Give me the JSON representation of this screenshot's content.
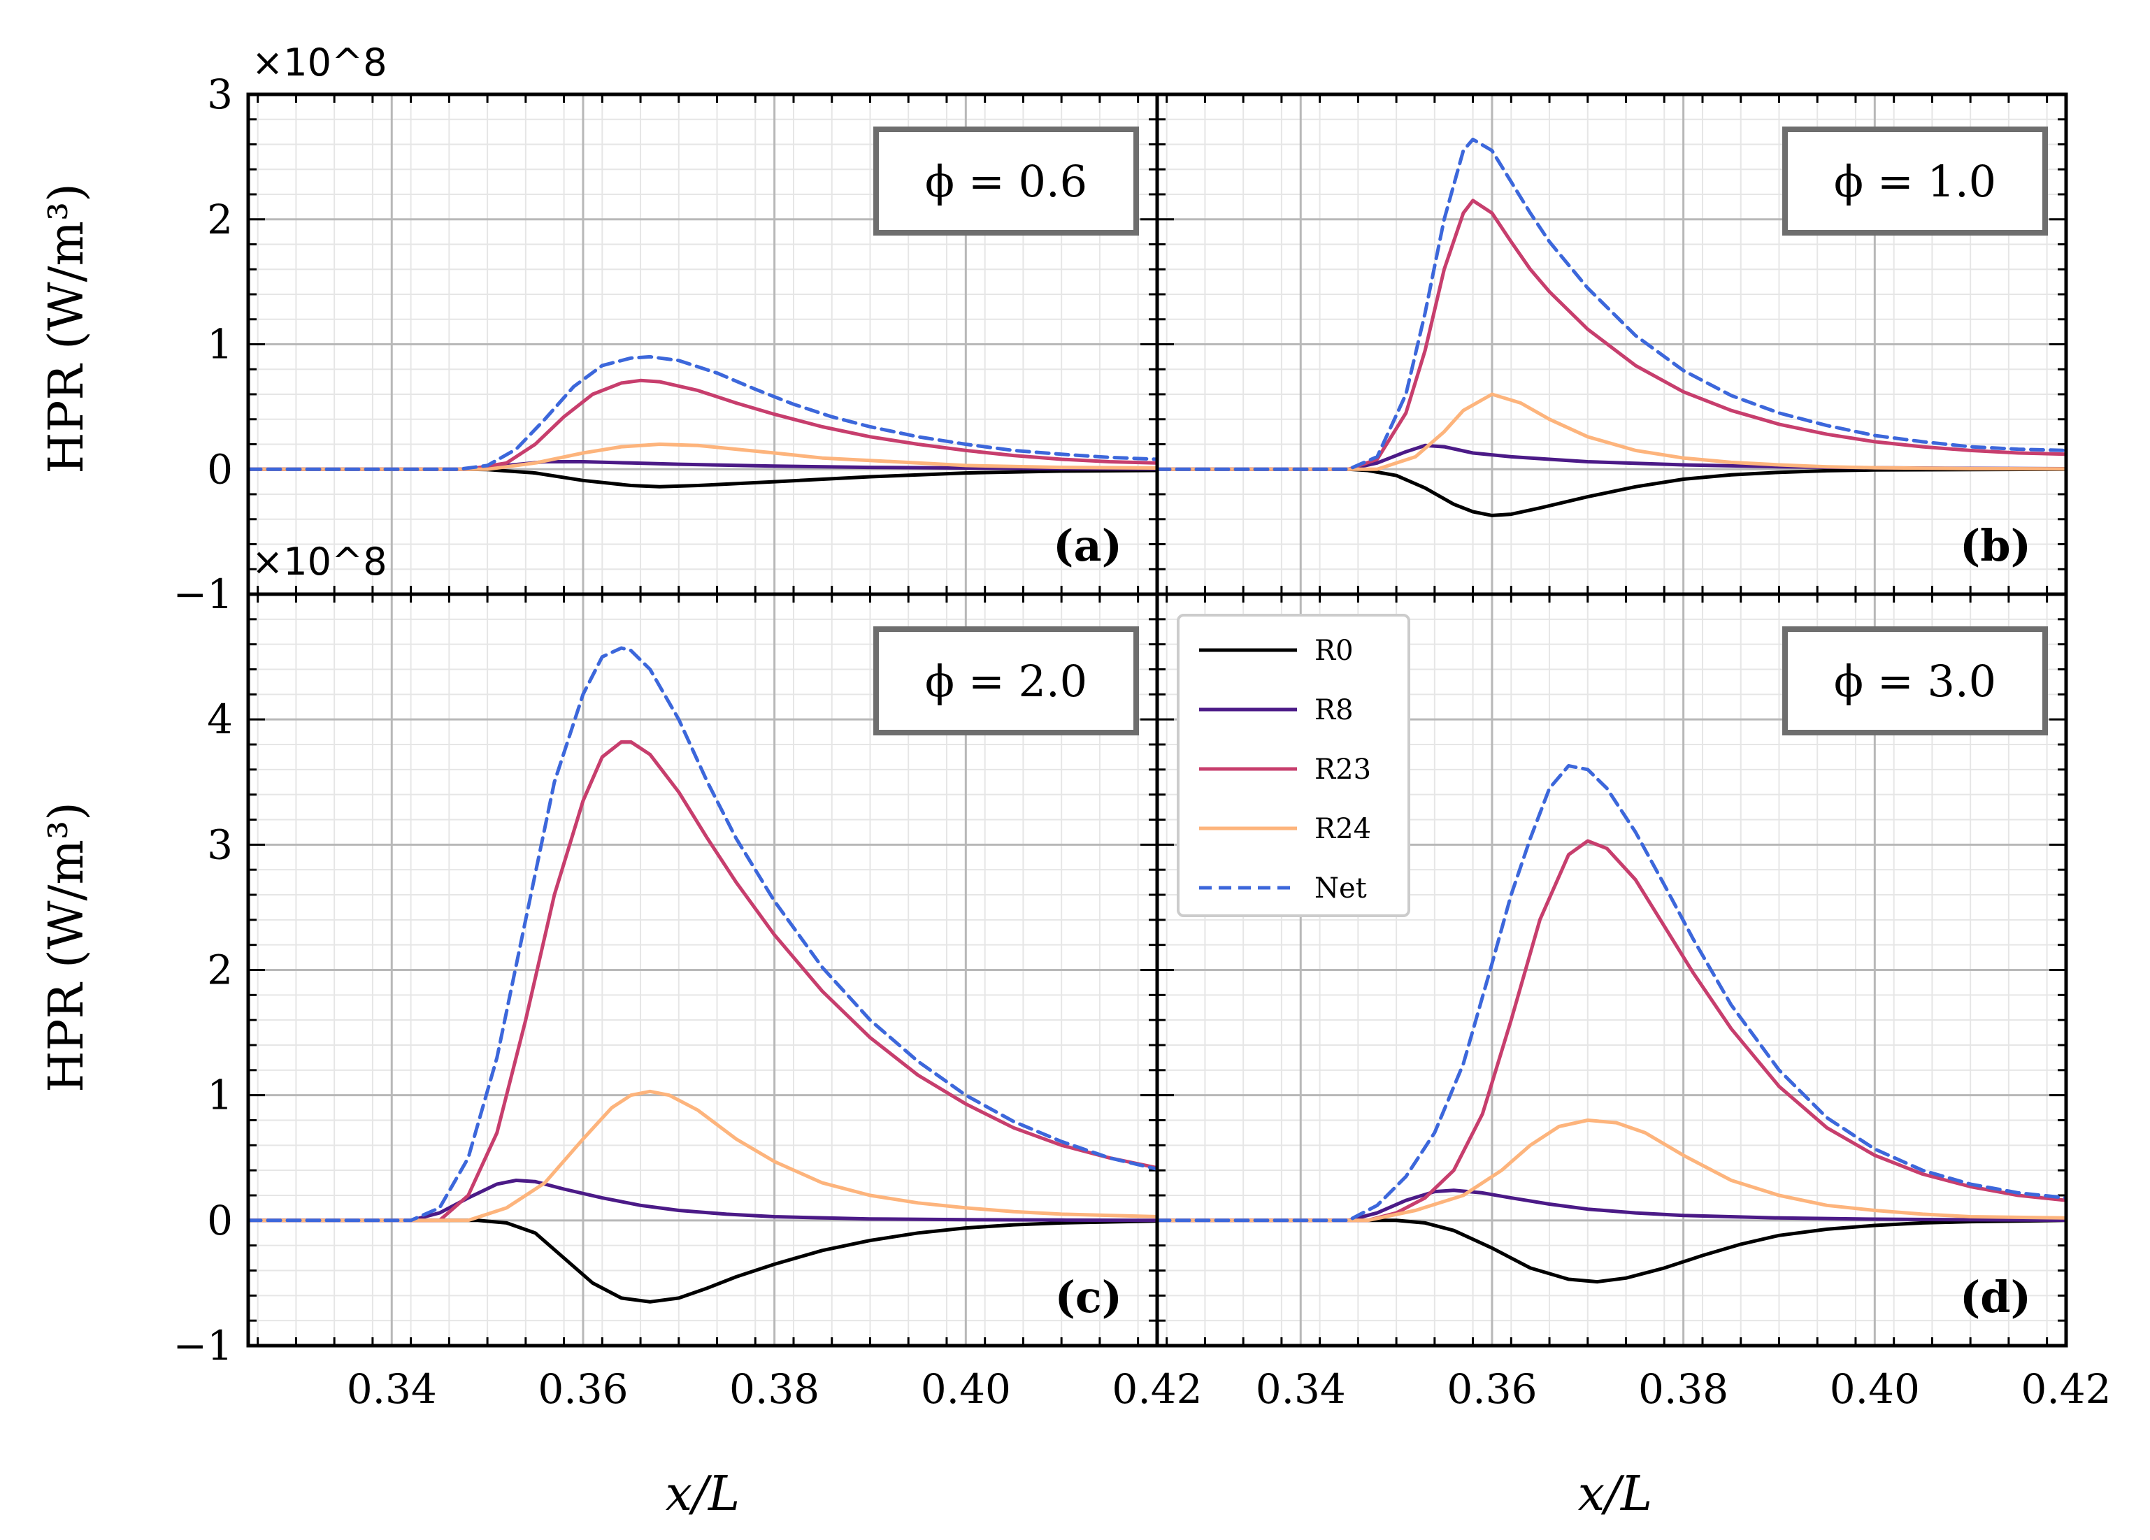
{
  "figure": {
    "xlabel": "x/L",
    "ylabel": "HPR (W/m³)",
    "multiplier": "×10^8",
    "xlim": [
      0.325,
      0.42
    ],
    "xticks": [
      "0.34",
      "0.36",
      "0.38",
      "0.40",
      "0.42"
    ]
  },
  "legend": [
    "R0",
    "R8",
    "R23",
    "R24",
    "Net"
  ],
  "colors": {
    "R0": "#000000",
    "R8": "#4b1a87",
    "R23": "#c73e6d",
    "R24": "#fdb47c",
    "Net": "#3c67db"
  },
  "chart_data": [
    {
      "type": "line",
      "panel": "(a)",
      "title": "ϕ = 0.6",
      "ylim": [
        -1,
        3
      ],
      "yticks": [
        "−1",
        "0",
        "1",
        "2",
        "3"
      ],
      "series": [
        {
          "name": "R0",
          "x": [
            0.325,
            0.348,
            0.35,
            0.355,
            0.36,
            0.365,
            0.368,
            0.372,
            0.38,
            0.39,
            0.4,
            0.41,
            0.42
          ],
          "y": [
            0,
            0,
            -0.003,
            -0.03,
            -0.09,
            -0.13,
            -0.14,
            -0.13,
            -0.1,
            -0.06,
            -0.03,
            -0.015,
            -0.01
          ]
        },
        {
          "name": "R8",
          "x": [
            0.325,
            0.348,
            0.352,
            0.356,
            0.36,
            0.365,
            0.37,
            0.38,
            0.39,
            0.4,
            0.41,
            0.42
          ],
          "y": [
            0,
            0,
            0.03,
            0.06,
            0.06,
            0.05,
            0.04,
            0.025,
            0.015,
            0.01,
            0.005,
            0.003
          ]
        },
        {
          "name": "R23",
          "x": [
            0.325,
            0.348,
            0.352,
            0.355,
            0.358,
            0.361,
            0.364,
            0.366,
            0.368,
            0.372,
            0.376,
            0.38,
            0.385,
            0.39,
            0.395,
            0.4,
            0.405,
            0.41,
            0.415,
            0.42
          ],
          "y": [
            0,
            0,
            0.05,
            0.2,
            0.42,
            0.6,
            0.69,
            0.71,
            0.7,
            0.63,
            0.53,
            0.44,
            0.34,
            0.26,
            0.2,
            0.15,
            0.11,
            0.08,
            0.06,
            0.05
          ]
        },
        {
          "name": "R24",
          "x": [
            0.325,
            0.35,
            0.355,
            0.36,
            0.364,
            0.368,
            0.372,
            0.376,
            0.38,
            0.385,
            0.39,
            0.395,
            0.4,
            0.41,
            0.42
          ],
          "y": [
            0,
            0,
            0.05,
            0.13,
            0.18,
            0.2,
            0.19,
            0.16,
            0.13,
            0.09,
            0.07,
            0.05,
            0.03,
            0.015,
            0.01
          ]
        },
        {
          "name": "Net",
          "x": [
            0.325,
            0.347,
            0.35,
            0.353,
            0.356,
            0.359,
            0.362,
            0.365,
            0.367,
            0.37,
            0.374,
            0.378,
            0.382,
            0.386,
            0.39,
            0.395,
            0.4,
            0.405,
            0.41,
            0.415,
            0.42
          ],
          "y": [
            0,
            0,
            0.03,
            0.16,
            0.4,
            0.66,
            0.83,
            0.89,
            0.9,
            0.87,
            0.77,
            0.64,
            0.52,
            0.42,
            0.34,
            0.26,
            0.2,
            0.15,
            0.12,
            0.095,
            0.08
          ]
        }
      ]
    },
    {
      "type": "line",
      "panel": "(b)",
      "title": "ϕ = 1.0",
      "ylim": [
        -1,
        3
      ],
      "yticks": [
        "−1",
        "0",
        "1",
        "2",
        "3"
      ],
      "series": [
        {
          "name": "R0",
          "x": [
            0.325,
            0.345,
            0.347,
            0.35,
            0.353,
            0.356,
            0.358,
            0.36,
            0.362,
            0.365,
            0.37,
            0.375,
            0.38,
            0.385,
            0.39,
            0.395,
            0.4,
            0.42
          ],
          "y": [
            0,
            0,
            -0.01,
            -0.05,
            -0.15,
            -0.28,
            -0.34,
            -0.37,
            -0.36,
            -0.31,
            -0.22,
            -0.14,
            -0.08,
            -0.045,
            -0.025,
            -0.012,
            -0.006,
            0
          ]
        },
        {
          "name": "R8",
          "x": [
            0.325,
            0.345,
            0.348,
            0.351,
            0.353,
            0.355,
            0.358,
            0.362,
            0.366,
            0.37,
            0.38,
            0.39,
            0.4,
            0.41,
            0.42
          ],
          "y": [
            0,
            0,
            0.05,
            0.14,
            0.19,
            0.18,
            0.13,
            0.1,
            0.08,
            0.06,
            0.035,
            0.02,
            0.012,
            0.007,
            0.004
          ]
        },
        {
          "name": "R23",
          "x": [
            0.325,
            0.345,
            0.348,
            0.351,
            0.353,
            0.355,
            0.357,
            0.358,
            0.36,
            0.362,
            0.364,
            0.366,
            0.37,
            0.375,
            0.38,
            0.385,
            0.39,
            0.395,
            0.4,
            0.405,
            0.41,
            0.415,
            0.42
          ],
          "y": [
            0,
            0,
            0.08,
            0.45,
            0.95,
            1.6,
            2.05,
            2.15,
            2.05,
            1.82,
            1.6,
            1.42,
            1.12,
            0.83,
            0.62,
            0.47,
            0.36,
            0.28,
            0.22,
            0.18,
            0.15,
            0.13,
            0.12
          ]
        },
        {
          "name": "R24",
          "x": [
            0.325,
            0.348,
            0.352,
            0.355,
            0.357,
            0.36,
            0.363,
            0.366,
            0.37,
            0.375,
            0.38,
            0.385,
            0.39,
            0.395,
            0.4,
            0.41,
            0.42
          ],
          "y": [
            0,
            0,
            0.1,
            0.3,
            0.47,
            0.6,
            0.53,
            0.4,
            0.26,
            0.15,
            0.09,
            0.055,
            0.035,
            0.02,
            0.012,
            0.005,
            0.003
          ]
        },
        {
          "name": "Net",
          "x": [
            0.325,
            0.345,
            0.348,
            0.351,
            0.353,
            0.355,
            0.357,
            0.358,
            0.36,
            0.362,
            0.364,
            0.366,
            0.37,
            0.375,
            0.38,
            0.385,
            0.39,
            0.395,
            0.4,
            0.405,
            0.41,
            0.415,
            0.42
          ],
          "y": [
            0,
            0,
            0.1,
            0.6,
            1.25,
            2.0,
            2.55,
            2.64,
            2.55,
            2.3,
            2.05,
            1.82,
            1.45,
            1.07,
            0.79,
            0.59,
            0.45,
            0.35,
            0.27,
            0.22,
            0.18,
            0.16,
            0.15
          ]
        }
      ]
    },
    {
      "type": "line",
      "panel": "(c)",
      "title": "ϕ = 2.0",
      "ylim": [
        -1,
        5
      ],
      "yticks": [
        "−1",
        "0",
        "1",
        "2",
        "3",
        "4"
      ],
      "series": [
        {
          "name": "R0",
          "x": [
            0.325,
            0.349,
            0.352,
            0.355,
            0.358,
            0.361,
            0.364,
            0.367,
            0.37,
            0.373,
            0.376,
            0.38,
            0.385,
            0.39,
            0.395,
            0.4,
            0.405,
            0.41,
            0.42
          ],
          "y": [
            0,
            0,
            -0.02,
            -0.1,
            -0.3,
            -0.5,
            -0.62,
            -0.65,
            -0.62,
            -0.54,
            -0.45,
            -0.35,
            -0.24,
            -0.16,
            -0.1,
            -0.06,
            -0.035,
            -0.02,
            -0.005
          ]
        },
        {
          "name": "R8",
          "x": [
            0.325,
            0.342,
            0.345,
            0.348,
            0.351,
            0.353,
            0.355,
            0.358,
            0.362,
            0.366,
            0.37,
            0.375,
            0.38,
            0.39,
            0.4,
            0.41,
            0.42
          ],
          "y": [
            0,
            0,
            0.06,
            0.18,
            0.29,
            0.32,
            0.31,
            0.25,
            0.18,
            0.12,
            0.08,
            0.05,
            0.03,
            0.012,
            0.006,
            0.003,
            0.001
          ]
        },
        {
          "name": "R23",
          "x": [
            0.325,
            0.345,
            0.348,
            0.351,
            0.354,
            0.357,
            0.36,
            0.362,
            0.364,
            0.365,
            0.367,
            0.37,
            0.373,
            0.376,
            0.38,
            0.385,
            0.39,
            0.395,
            0.4,
            0.405,
            0.41,
            0.415,
            0.42
          ],
          "y": [
            0,
            0,
            0.2,
            0.7,
            1.6,
            2.6,
            3.35,
            3.7,
            3.82,
            3.82,
            3.72,
            3.42,
            3.05,
            2.7,
            2.28,
            1.83,
            1.46,
            1.16,
            0.93,
            0.74,
            0.6,
            0.5,
            0.42
          ]
        },
        {
          "name": "R24",
          "x": [
            0.325,
            0.348,
            0.352,
            0.356,
            0.36,
            0.363,
            0.365,
            0.367,
            0.369,
            0.372,
            0.376,
            0.38,
            0.385,
            0.39,
            0.395,
            0.4,
            0.405,
            0.41,
            0.42
          ],
          "y": [
            0,
            0,
            0.1,
            0.3,
            0.65,
            0.9,
            1.0,
            1.03,
            1.0,
            0.88,
            0.65,
            0.47,
            0.3,
            0.2,
            0.14,
            0.1,
            0.07,
            0.05,
            0.03
          ]
        },
        {
          "name": "Net",
          "x": [
            0.325,
            0.342,
            0.345,
            0.348,
            0.351,
            0.354,
            0.357,
            0.36,
            0.362,
            0.364,
            0.365,
            0.367,
            0.37,
            0.373,
            0.376,
            0.38,
            0.385,
            0.39,
            0.395,
            0.4,
            0.405,
            0.41,
            0.415,
            0.42
          ],
          "y": [
            0,
            0,
            0.1,
            0.5,
            1.3,
            2.4,
            3.5,
            4.2,
            4.5,
            4.57,
            4.55,
            4.4,
            4.0,
            3.5,
            3.05,
            2.55,
            2.02,
            1.6,
            1.27,
            1.0,
            0.79,
            0.63,
            0.5,
            0.41
          ]
        }
      ]
    },
    {
      "type": "line",
      "panel": "(d)",
      "title": "ϕ = 3.0",
      "ylim": [
        -1,
        5
      ],
      "yticks": [
        "−1",
        "0",
        "1",
        "2",
        "3"
      ],
      "series": [
        {
          "name": "R0",
          "x": [
            0.325,
            0.35,
            0.353,
            0.356,
            0.36,
            0.364,
            0.368,
            0.371,
            0.374,
            0.378,
            0.382,
            0.386,
            0.39,
            0.395,
            0.4,
            0.405,
            0.41,
            0.42
          ],
          "y": [
            0,
            0,
            -0.02,
            -0.08,
            -0.22,
            -0.38,
            -0.47,
            -0.49,
            -0.46,
            -0.38,
            -0.28,
            -0.19,
            -0.12,
            -0.07,
            -0.04,
            -0.02,
            -0.01,
            0
          ]
        },
        {
          "name": "R8",
          "x": [
            0.325,
            0.345,
            0.348,
            0.351,
            0.354,
            0.356,
            0.359,
            0.362,
            0.366,
            0.37,
            0.375,
            0.38,
            0.39,
            0.4,
            0.41,
            0.42
          ],
          "y": [
            0,
            0,
            0.06,
            0.16,
            0.23,
            0.24,
            0.22,
            0.18,
            0.13,
            0.09,
            0.06,
            0.04,
            0.02,
            0.01,
            0.005,
            0.002
          ]
        },
        {
          "name": "R23",
          "x": [
            0.325,
            0.347,
            0.35,
            0.353,
            0.356,
            0.359,
            0.362,
            0.365,
            0.368,
            0.37,
            0.372,
            0.375,
            0.378,
            0.381,
            0.385,
            0.39,
            0.395,
            0.4,
            0.405,
            0.41,
            0.415,
            0.42
          ],
          "y": [
            0,
            0,
            0.06,
            0.18,
            0.4,
            0.85,
            1.6,
            2.4,
            2.92,
            3.03,
            2.97,
            2.72,
            2.35,
            1.98,
            1.53,
            1.07,
            0.74,
            0.52,
            0.37,
            0.27,
            0.2,
            0.16
          ]
        },
        {
          "name": "R24",
          "x": [
            0.325,
            0.347,
            0.352,
            0.357,
            0.361,
            0.364,
            0.367,
            0.37,
            0.373,
            0.376,
            0.38,
            0.385,
            0.39,
            0.395,
            0.4,
            0.405,
            0.41,
            0.42
          ],
          "y": [
            0,
            0,
            0.08,
            0.2,
            0.4,
            0.6,
            0.75,
            0.8,
            0.78,
            0.7,
            0.52,
            0.32,
            0.2,
            0.12,
            0.08,
            0.05,
            0.03,
            0.02
          ]
        },
        {
          "name": "Net",
          "x": [
            0.325,
            0.345,
            0.348,
            0.351,
            0.354,
            0.357,
            0.36,
            0.362,
            0.364,
            0.366,
            0.368,
            0.37,
            0.372,
            0.375,
            0.378,
            0.381,
            0.385,
            0.39,
            0.395,
            0.4,
            0.405,
            0.41,
            0.415,
            0.42
          ],
          "y": [
            0,
            0,
            0.12,
            0.35,
            0.7,
            1.25,
            2.05,
            2.6,
            3.05,
            3.45,
            3.63,
            3.6,
            3.45,
            3.1,
            2.68,
            2.25,
            1.72,
            1.2,
            0.82,
            0.57,
            0.4,
            0.29,
            0.22,
            0.18
          ]
        }
      ]
    }
  ]
}
